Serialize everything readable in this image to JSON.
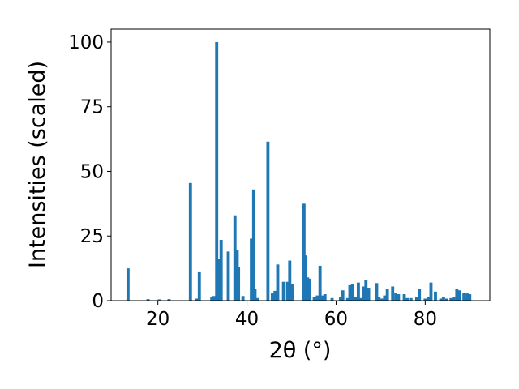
{
  "chart_data": {
    "type": "bar",
    "xlabel": "2θ (°)",
    "ylabel": "Intensities (scaled)",
    "xlim": [
      9.5,
      94.5
    ],
    "ylim": [
      0,
      105
    ],
    "xticks": [
      20,
      40,
      60,
      80
    ],
    "yticks": [
      0,
      25,
      50,
      75,
      100
    ],
    "bar_color": "#1f77b4",
    "bar_width": 0.7,
    "grid": false,
    "x": [
      13.3,
      17.8,
      20.3,
      22.5,
      27.3,
      28.7,
      29.3,
      32.1,
      32.6,
      33.2,
      33.7,
      34.2,
      35.8,
      37.3,
      37.8,
      38.1,
      39.1,
      41.0,
      41.5,
      41.8,
      42.4,
      44.7,
      45.7,
      46.3,
      46.9,
      48.2,
      49.1,
      49.6,
      50.1,
      52.8,
      53.2,
      53.6,
      54.1,
      55.1,
      55.8,
      56.4,
      56.9,
      57.5,
      59.1,
      61.0,
      61.5,
      62.6,
      63.1,
      63.7,
      64.4,
      65.0,
      65.6,
      66.2,
      66.7,
      67.3,
      69.1,
      69.6,
      70.3,
      70.9,
      71.5,
      72.7,
      73.4,
      74.0,
      75.3,
      76.0,
      76.8,
      78.1,
      78.7,
      80.0,
      80.7,
      81.3,
      82.3,
      83.5,
      84.1,
      84.8,
      85.8,
      86.4,
      87.1,
      87.7,
      88.7,
      89.4,
      90.0
    ],
    "values": [
      12.5,
      0.6,
      0.5,
      0.6,
      45.5,
      0.8,
      11.0,
      1.5,
      1.8,
      100.0,
      16.0,
      23.5,
      19.0,
      33.0,
      19.5,
      13.0,
      1.8,
      24.0,
      43.0,
      4.5,
      1.0,
      61.5,
      2.8,
      3.8,
      14.0,
      7.3,
      7.3,
      15.5,
      6.5,
      37.5,
      17.5,
      9.0,
      8.5,
      1.5,
      2.0,
      13.5,
      2.0,
      2.5,
      1.0,
      1.5,
      4.0,
      1.0,
      6.0,
      6.5,
      1.5,
      7.0,
      1.0,
      5.5,
      8.0,
      5.0,
      6.8,
      1.5,
      0.8,
      2.0,
      4.5,
      5.5,
      3.0,
      2.5,
      2.5,
      1.0,
      1.0,
      1.5,
      4.5,
      0.8,
      1.5,
      7.0,
      3.5,
      0.8,
      1.5,
      0.8,
      1.0,
      1.5,
      4.5,
      4.0,
      3.0,
      2.8,
      2.5
    ]
  }
}
